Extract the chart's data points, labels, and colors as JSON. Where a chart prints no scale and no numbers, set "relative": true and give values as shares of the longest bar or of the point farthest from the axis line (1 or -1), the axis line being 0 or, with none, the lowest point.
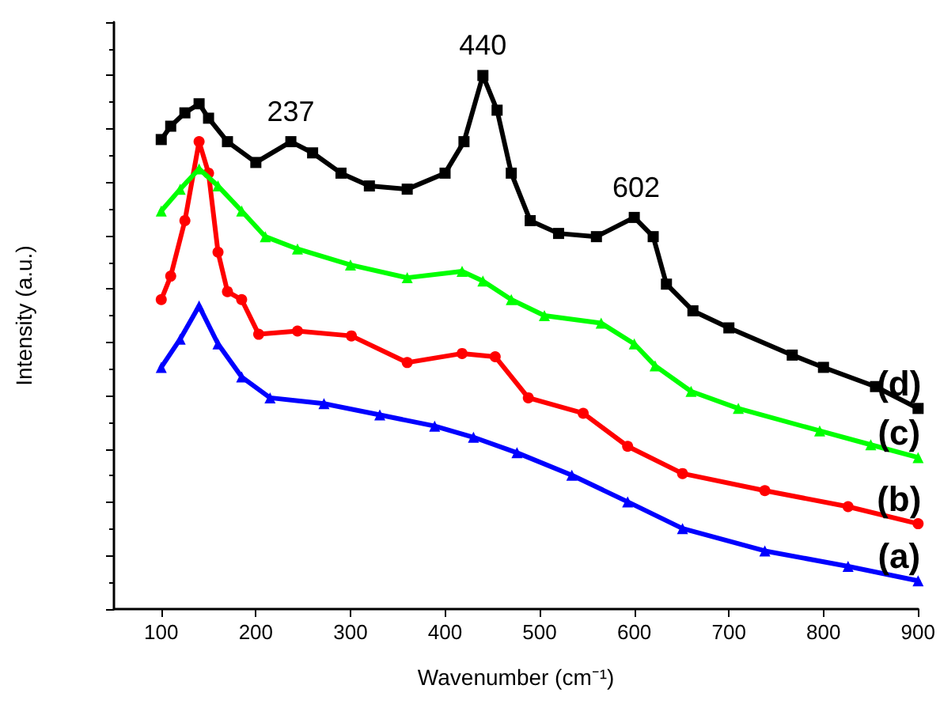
{
  "chart_data": {
    "type": "line",
    "relative": true,
    "xlabel": "Wavenumber (cm⁻¹)",
    "ylabel": "Intensity (a.u.)",
    "xlim": [
      50,
      900
    ],
    "xticks": [
      100,
      200,
      300,
      400,
      500,
      600,
      700,
      800,
      900
    ],
    "grid": false,
    "legend": false,
    "line_style": "solid",
    "annotations": [
      {
        "text": "237",
        "x": 237,
        "y": 0.876
      },
      {
        "text": "440",
        "x": 440,
        "y": 1.0
      },
      {
        "text": "602",
        "x": 602,
        "y": 0.734
      }
    ],
    "series": [
      {
        "name": "(a)",
        "color": "#0000ff",
        "marker": "triangle",
        "x": [
          100,
          120,
          140,
          160,
          185,
          215,
          272,
          331,
          389,
          430,
          476,
          534,
          593,
          651,
          738,
          826,
          900
        ],
        "values": [
          0.453,
          0.506,
          0.568,
          0.497,
          0.435,
          0.396,
          0.385,
          0.364,
          0.343,
          0.322,
          0.293,
          0.251,
          0.201,
          0.151,
          0.109,
          0.08,
          0.053
        ]
      },
      {
        "name": "(b)",
        "color": "#ff0000",
        "marker": "circle",
        "x": [
          100,
          110,
          125,
          140,
          150,
          160,
          170,
          185,
          203,
          244,
          301,
          360,
          418,
          453,
          488,
          546,
          593,
          651,
          738,
          826,
          900
        ],
        "values": [
          0.58,
          0.624,
          0.728,
          0.876,
          0.817,
          0.669,
          0.595,
          0.58,
          0.515,
          0.521,
          0.512,
          0.462,
          0.479,
          0.473,
          0.396,
          0.367,
          0.305,
          0.254,
          0.222,
          0.192,
          0.16
        ]
      },
      {
        "name": "(c)",
        "color": "#00ff00",
        "marker": "triangle",
        "x": [
          100,
          120,
          140,
          160,
          185,
          210,
          244,
          300,
          360,
          418,
          440,
          470,
          505,
          565,
          600,
          622,
          660,
          710,
          796,
          850,
          900
        ],
        "values": [
          0.746,
          0.787,
          0.825,
          0.793,
          0.746,
          0.698,
          0.675,
          0.645,
          0.621,
          0.633,
          0.615,
          0.58,
          0.55,
          0.536,
          0.497,
          0.456,
          0.408,
          0.376,
          0.334,
          0.308,
          0.284
        ]
      },
      {
        "name": "(d)",
        "color": "#000000",
        "marker": "square",
        "x": [
          100,
          110,
          125,
          140,
          150,
          170,
          200,
          237,
          260,
          290,
          320,
          360,
          400,
          420,
          440,
          455,
          470,
          490,
          520,
          560,
          600,
          620,
          634,
          662,
          700,
          767,
          800,
          855,
          900
        ],
        "values": [
          0.88,
          0.905,
          0.93,
          0.947,
          0.92,
          0.876,
          0.837,
          0.876,
          0.855,
          0.817,
          0.793,
          0.787,
          0.817,
          0.876,
          1.0,
          0.935,
          0.817,
          0.728,
          0.704,
          0.698,
          0.734,
          0.698,
          0.609,
          0.559,
          0.527,
          0.476,
          0.453,
          0.417,
          0.376
        ]
      }
    ]
  }
}
